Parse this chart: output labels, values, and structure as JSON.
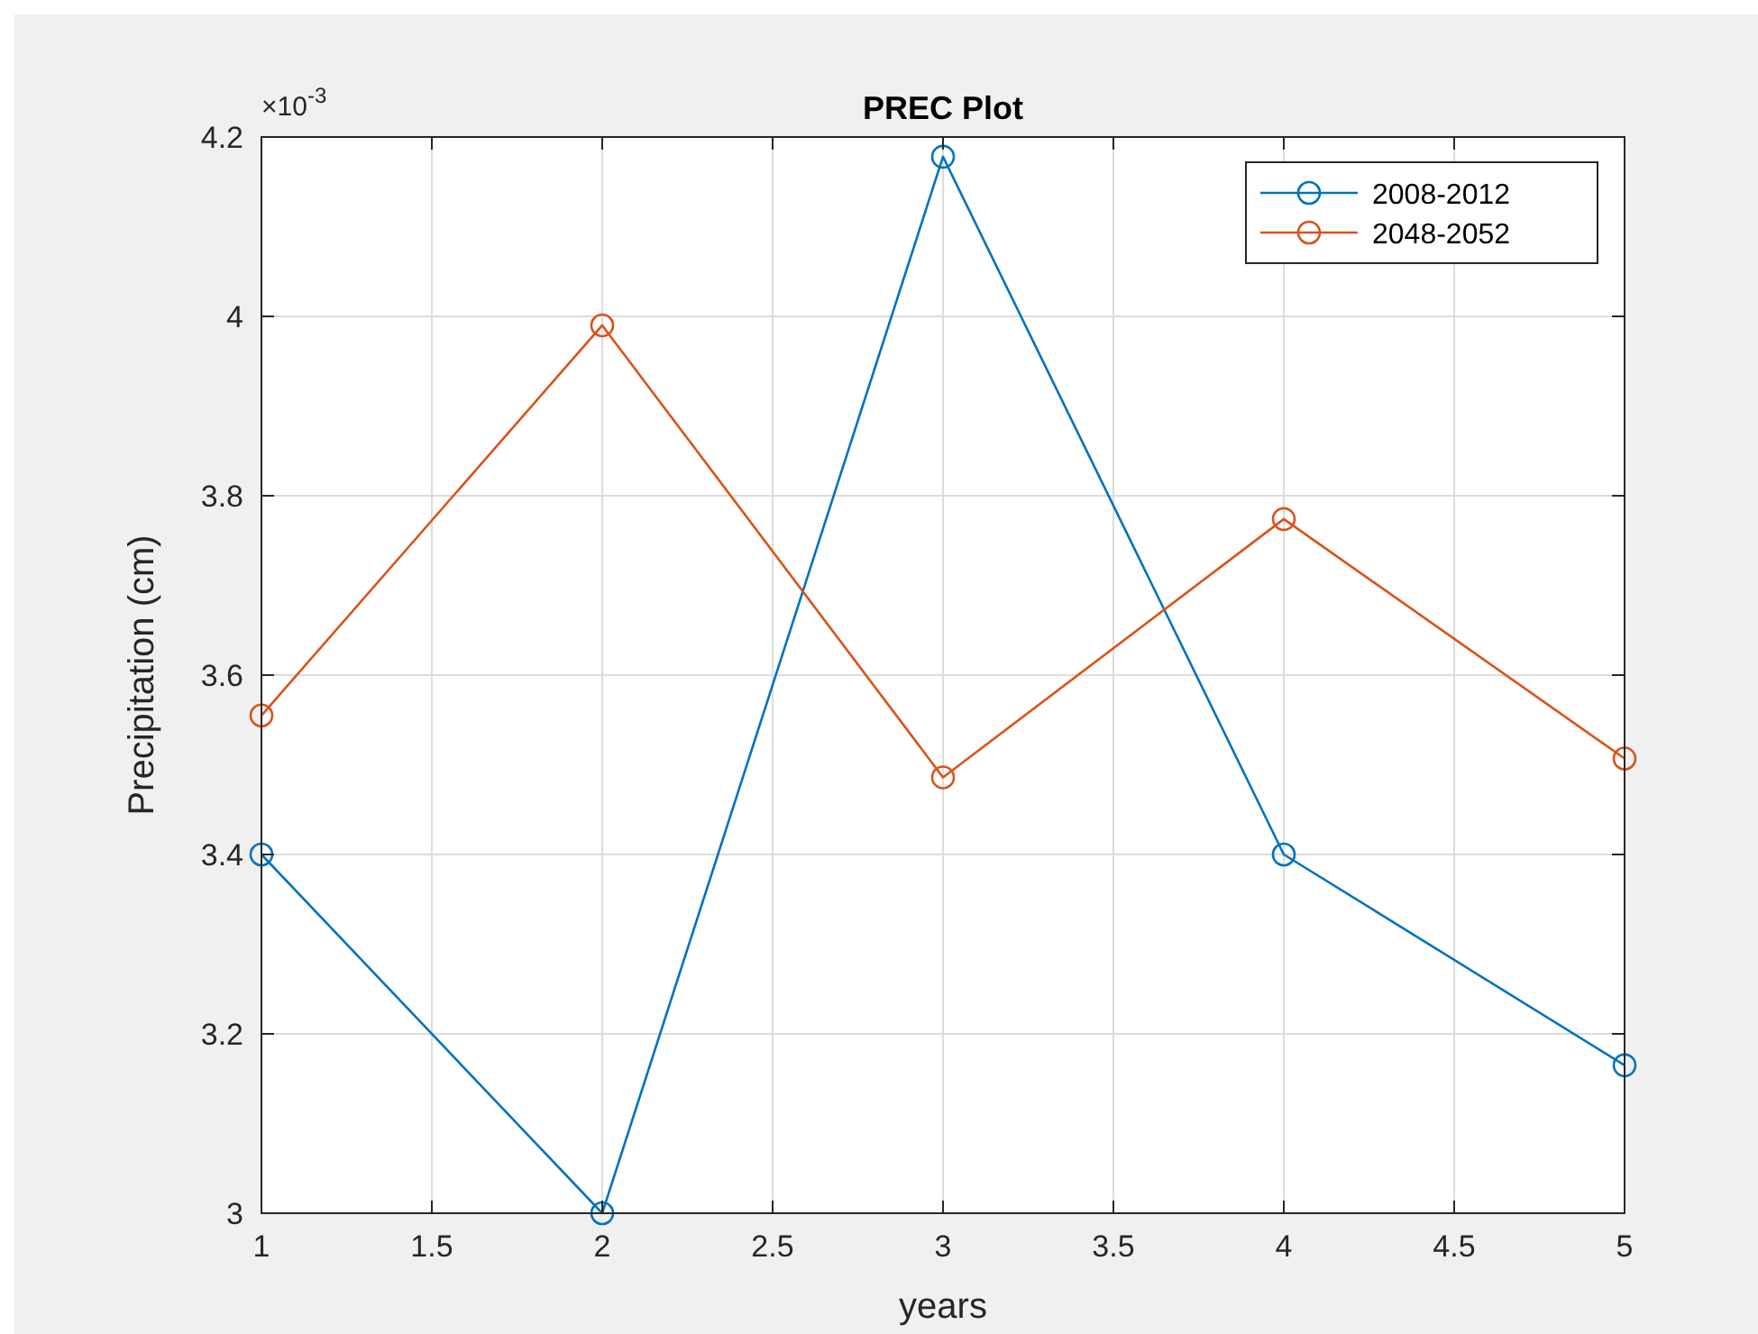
{
  "chart_data": {
    "type": "line",
    "title": "PREC Plot",
    "xlabel": "years",
    "ylabel": "Precipitation (cm)",
    "annotations": [
      "×10$^{-3}$"
    ],
    "x": [
      1,
      2,
      3,
      4,
      5
    ],
    "series": [
      {
        "name": "2008-2012",
        "color": "#0072bd",
        "values": [
          3.4,
          3.0,
          4.178,
          3.4,
          3.165
        ]
      },
      {
        "name": "2048-2052",
        "color": "#d95319",
        "values": [
          3.555,
          3.99,
          3.486,
          3.774,
          3.507
        ]
      }
    ],
    "xlim": [
      1,
      5
    ],
    "xticks": [
      1,
      1.5,
      2,
      2.5,
      3,
      3.5,
      4,
      4.5,
      5
    ],
    "ylim": [
      3,
      4.2
    ],
    "yticks": [
      3,
      3.2,
      3.4,
      3.6,
      3.8,
      4,
      4.2
    ],
    "grid": true,
    "legend": "top right",
    "marker": "circle",
    "line_style": "solid"
  }
}
